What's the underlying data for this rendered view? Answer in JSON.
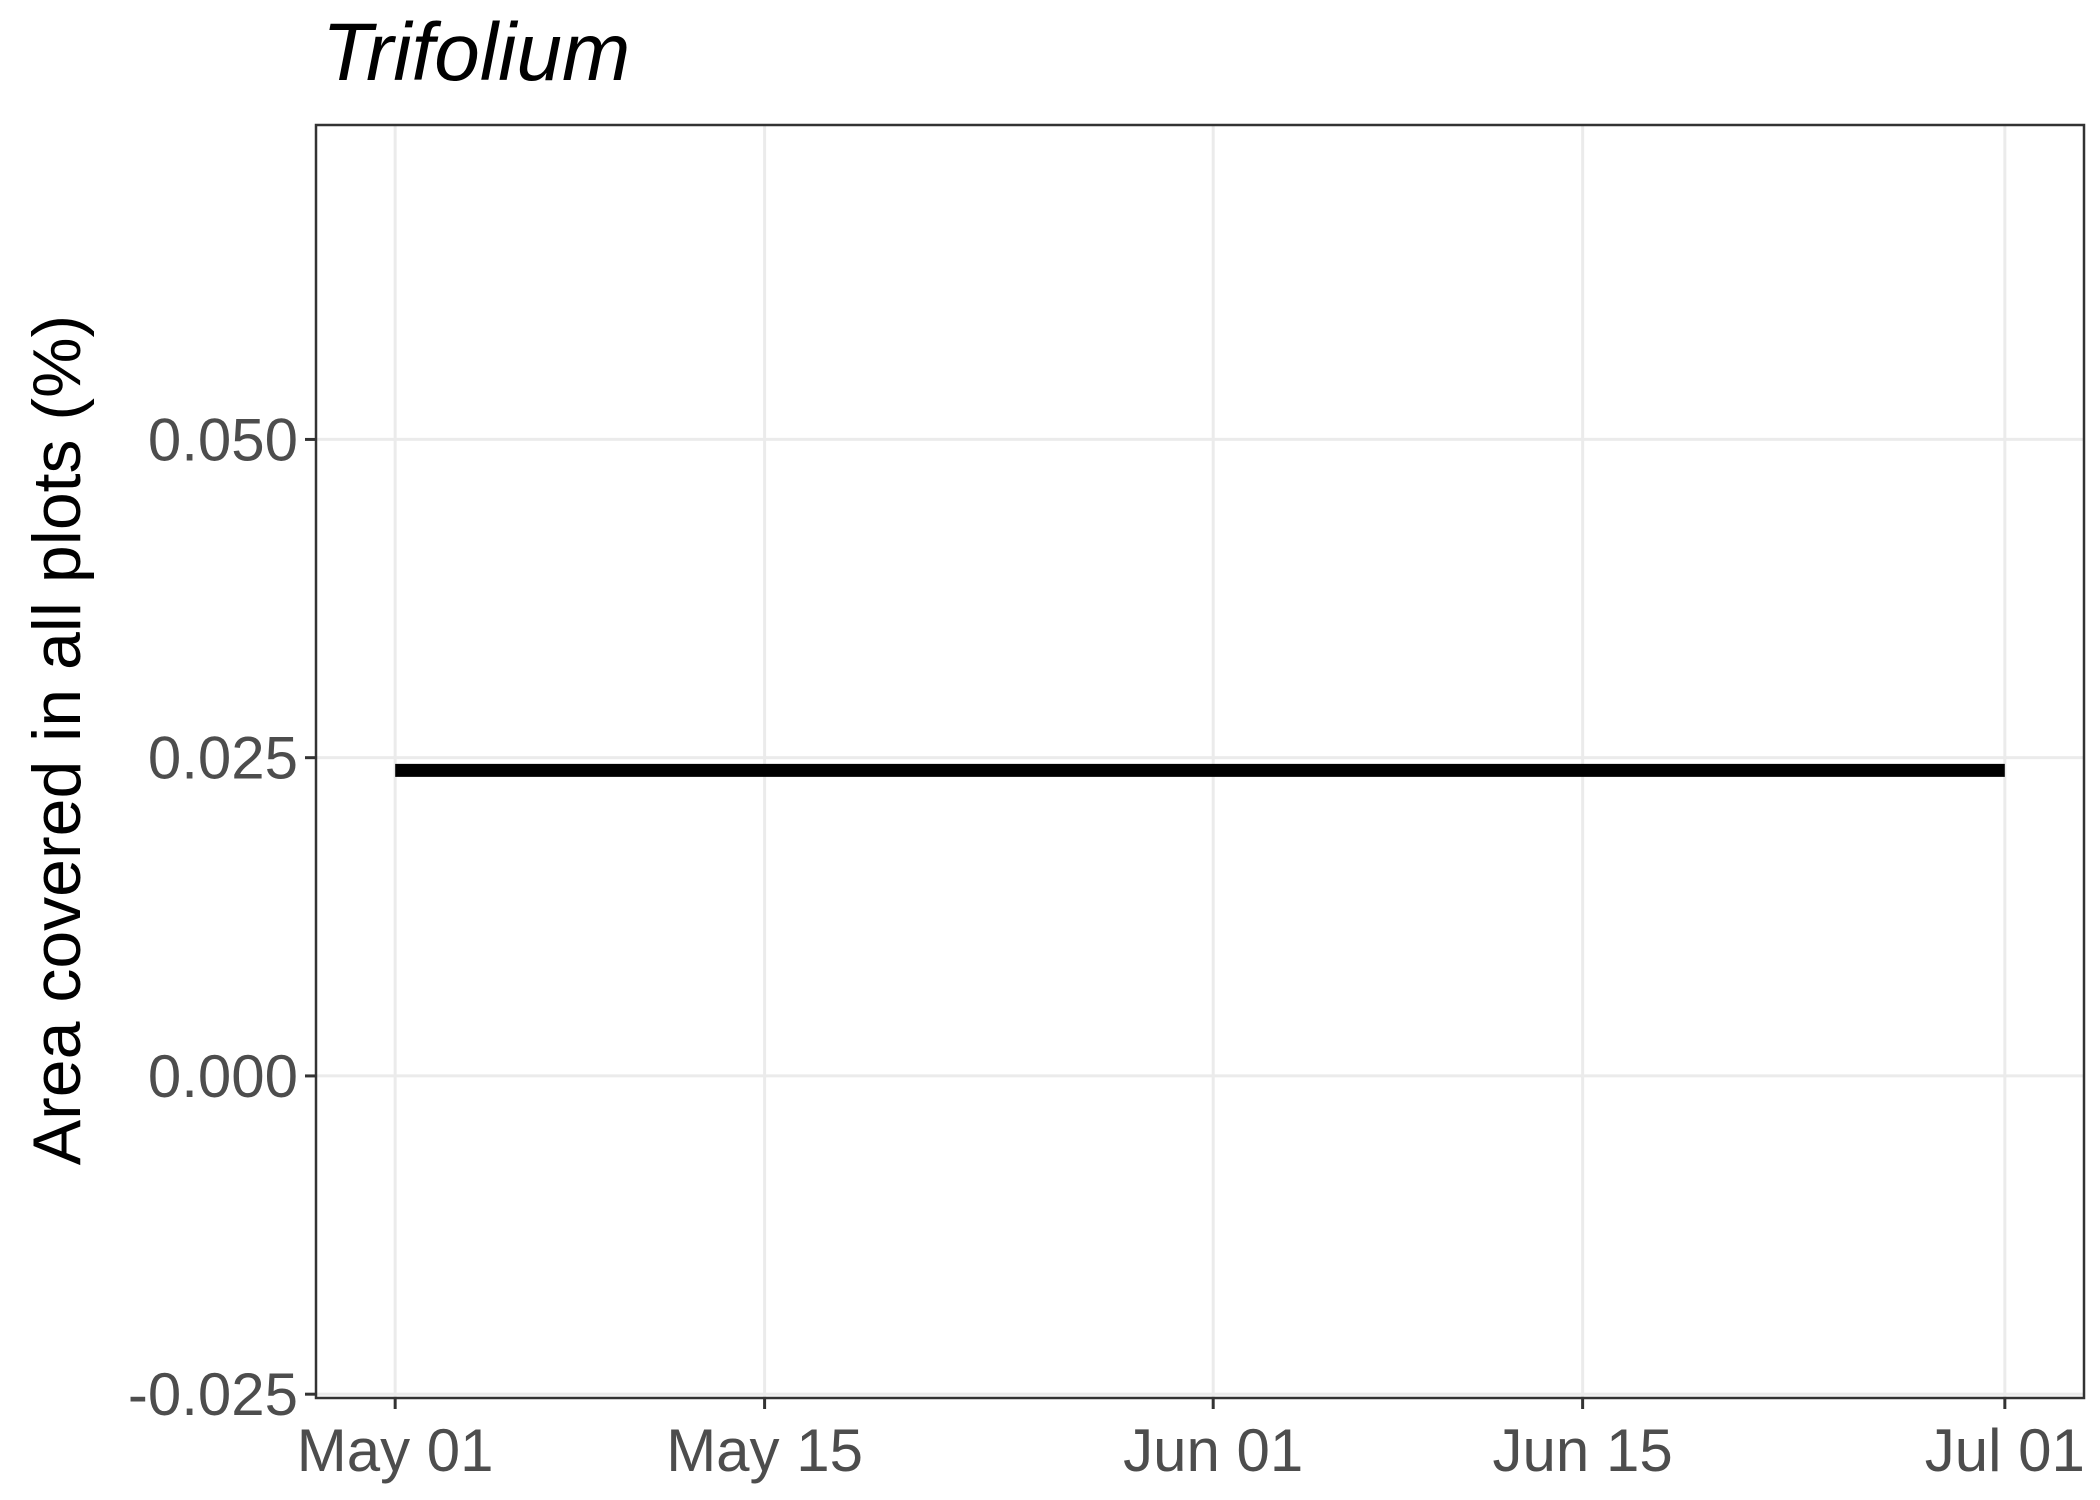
{
  "chart_data": {
    "type": "line",
    "title": "Trifolium",
    "xlabel": "",
    "ylabel": "Area covered in all plots (%)",
    "x_ticks": [
      "May 01",
      "May 15",
      "Jun 01",
      "Jun 15",
      "Jul 01"
    ],
    "x_tick_dates": [
      "05-01",
      "05-15",
      "06-01",
      "06-15",
      "07-01"
    ],
    "y_ticks": [
      "-0.025",
      "0.000",
      "0.025",
      "0.050"
    ],
    "ylim": [
      -0.0253,
      0.0747
    ],
    "xlim": [
      "04-28",
      "07-04"
    ],
    "grid": true,
    "series": [
      {
        "color": "#000000",
        "points": [
          {
            "x": "05-01",
            "y": 0.024
          },
          {
            "x": "07-01",
            "y": 0.024
          }
        ]
      }
    ]
  }
}
